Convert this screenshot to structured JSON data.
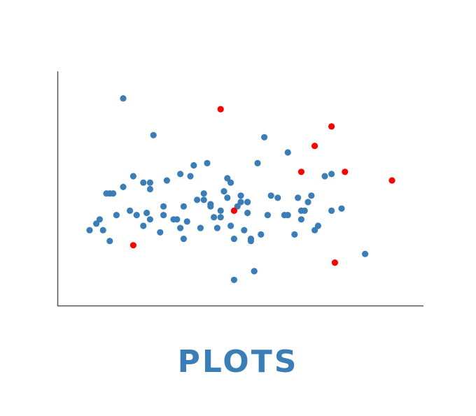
{
  "caption": "PLOTS",
  "colors": {
    "normal": "#3a7db7",
    "outlier": "#ff0000",
    "axis": "#555555"
  },
  "chart_data": {
    "type": "scatter",
    "title": "",
    "xlabel": "",
    "ylabel": "",
    "xlim": [
      0,
      100
    ],
    "ylim": [
      0,
      100
    ],
    "grid": false,
    "ticks": false,
    "series": [
      {
        "key": "normal",
        "points": [
          [
            5,
            31
          ],
          [
            7,
            34
          ],
          [
            8,
            36
          ],
          [
            9,
            31
          ],
          [
            10,
            48
          ],
          [
            11,
            26
          ],
          [
            11,
            48
          ],
          [
            12,
            48
          ],
          [
            13,
            38
          ],
          [
            15,
            51
          ],
          [
            15,
            92
          ],
          [
            17,
            40
          ],
          [
            18,
            56
          ],
          [
            19,
            38
          ],
          [
            21,
            53
          ],
          [
            21,
            33
          ],
          [
            22,
            39
          ],
          [
            23,
            53
          ],
          [
            23,
            50
          ],
          [
            23,
            36
          ],
          [
            24,
            75
          ],
          [
            26,
            30
          ],
          [
            27,
            42
          ],
          [
            27,
            38
          ],
          [
            28,
            54
          ],
          [
            30,
            36
          ],
          [
            31,
            36
          ],
          [
            32,
            32
          ],
          [
            32,
            57
          ],
          [
            33,
            27
          ],
          [
            33,
            42
          ],
          [
            34,
            35
          ],
          [
            35,
            56
          ],
          [
            36,
            61
          ],
          [
            37,
            45
          ],
          [
            38,
            32
          ],
          [
            39,
            45
          ],
          [
            39,
            48
          ],
          [
            40,
            62
          ],
          [
            41,
            43
          ],
          [
            41,
            42
          ],
          [
            42,
            37
          ],
          [
            43,
            32
          ],
          [
            44,
            37
          ],
          [
            44,
            40
          ],
          [
            45,
            49
          ],
          [
            46,
            46
          ],
          [
            46,
            55
          ],
          [
            47,
            33
          ],
          [
            47,
            53
          ],
          [
            48,
            27
          ],
          [
            48,
            8
          ],
          [
            49,
            42
          ],
          [
            50,
            47
          ],
          [
            50,
            44
          ],
          [
            51,
            31
          ],
          [
            52,
            44
          ],
          [
            52,
            39
          ],
          [
            52,
            44
          ],
          [
            53,
            26
          ],
          [
            53,
            27
          ],
          [
            54,
            12
          ],
          [
            54,
            12
          ],
          [
            55,
            62
          ],
          [
            56,
            29
          ],
          [
            57,
            74
          ],
          [
            58,
            38
          ],
          [
            59,
            47
          ],
          [
            61,
            46
          ],
          [
            63,
            38
          ],
          [
            64,
            67
          ],
          [
            64,
            38
          ],
          [
            66,
            29
          ],
          [
            67,
            46
          ],
          [
            68,
            40
          ],
          [
            68,
            36
          ],
          [
            69,
            40
          ],
          [
            70,
            44
          ],
          [
            71,
            47
          ],
          [
            72,
            31
          ],
          [
            73,
            33
          ],
          [
            75,
            56
          ],
          [
            77,
            57
          ],
          [
            77,
            40
          ],
          [
            80,
            41
          ],
          [
            87,
            20
          ]
        ]
      },
      {
        "key": "outlier",
        "points": [
          [
            18,
            24
          ],
          [
            44,
            87
          ],
          [
            48,
            40
          ],
          [
            68,
            58
          ],
          [
            72,
            70
          ],
          [
            77,
            79
          ],
          [
            78,
            16
          ],
          [
            81,
            58
          ],
          [
            95,
            54
          ]
        ]
      }
    ]
  }
}
